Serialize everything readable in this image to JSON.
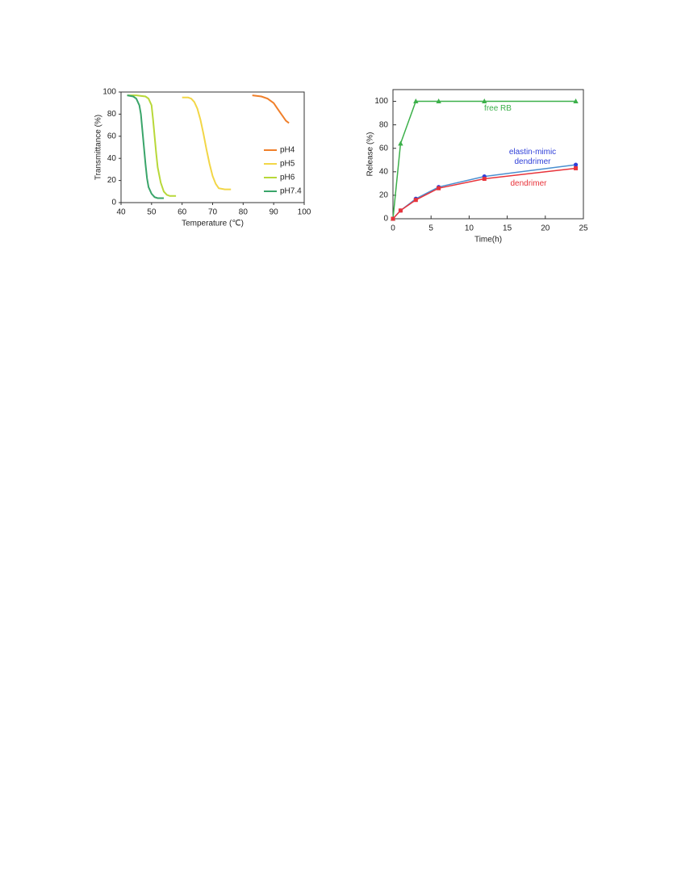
{
  "chart_data": [
    {
      "type": "line",
      "ylabel": "Transmittance (%)",
      "xlabel": "Temperature (℃)",
      "xlim": [
        40,
        100
      ],
      "xticks": [
        40,
        50,
        60,
        70,
        80,
        90,
        100
      ],
      "ylim": [
        0,
        100
      ],
      "yticks": [
        0,
        20,
        40,
        60,
        80,
        100
      ],
      "legend": "right",
      "series": [
        {
          "name": "pH4",
          "color": "#f07f2a",
          "x": [
            83,
            86,
            88,
            90,
            91,
            92,
            93,
            94,
            95
          ],
          "values": [
            97,
            96,
            94,
            90,
            86,
            82,
            78,
            74,
            72
          ]
        },
        {
          "name": "pH5",
          "color": "#f2d647",
          "x": [
            60,
            62,
            63,
            64,
            65,
            66,
            67,
            68,
            69,
            70,
            71,
            72,
            74,
            76
          ],
          "values": [
            95,
            95,
            94,
            91,
            85,
            75,
            62,
            48,
            35,
            24,
            17,
            13,
            12,
            12
          ]
        },
        {
          "name": "pH6",
          "color": "#b8d839",
          "x": [
            42,
            45,
            48,
            49,
            50,
            50.5,
            51,
            51.5,
            52,
            53,
            54,
            55,
            56,
            58
          ],
          "values": [
            97,
            97,
            96,
            94,
            88,
            75,
            60,
            45,
            32,
            18,
            10,
            7,
            6,
            6
          ]
        },
        {
          "name": "pH7.4",
          "color": "#3aa56a",
          "x": [
            42,
            44,
            45,
            46,
            46.5,
            47,
            47.5,
            48,
            48.5,
            49,
            50,
            51,
            52,
            54
          ],
          "values": [
            97,
            96,
            94,
            88,
            80,
            65,
            50,
            35,
            22,
            14,
            8,
            5,
            4,
            4
          ]
        }
      ]
    },
    {
      "type": "line",
      "ylabel": "Release (%)",
      "xlabel": "Time(h)",
      "xlim": [
        0,
        25
      ],
      "xticks": [
        0,
        5,
        10,
        15,
        20,
        25
      ],
      "ylim": [
        0,
        110
      ],
      "yticks": [
        0,
        20,
        40,
        60,
        80,
        100
      ],
      "legend": "inline",
      "series": [
        {
          "name": "free RB",
          "color": "#3cb04a",
          "marker": "triangle",
          "x": [
            0,
            1,
            3,
            6,
            12,
            24
          ],
          "values": [
            0,
            64,
            100,
            100,
            100,
            100
          ]
        },
        {
          "name": "elastin-mimic dendrimer",
          "color": "#2f3fd8",
          "line_color": "#4a8fd0",
          "marker": "circle",
          "x": [
            0,
            1,
            3,
            6,
            12,
            24
          ],
          "values": [
            0,
            7,
            17,
            27,
            36,
            46
          ]
        },
        {
          "name": "dendrimer",
          "color": "#e8333a",
          "marker": "square",
          "x": [
            0,
            1,
            3,
            6,
            12,
            24
          ],
          "values": [
            0,
            7,
            16,
            26,
            34,
            43
          ]
        }
      ]
    }
  ]
}
